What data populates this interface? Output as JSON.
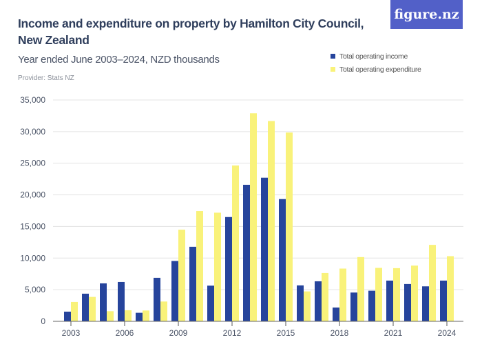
{
  "title": "Income and expenditure on property by Hamilton City Council, New Zealand",
  "subtitle": "Year ended June 2003–2024, NZD thousands",
  "provider": "Provider: Stats NZ",
  "logo": "figure.nz",
  "colors": {
    "income": "#26449c",
    "expenditure": "#f9f27a",
    "logo_bg": "#5260c8"
  },
  "chart_data": {
    "type": "bar",
    "title": "Income and expenditure on property by Hamilton City Council, New Zealand",
    "subtitle": "Year ended June 2003–2024, NZD thousands",
    "categories": [
      "2003",
      "2004",
      "2005",
      "2006",
      "2007",
      "2008",
      "2009",
      "2010",
      "2011",
      "2012",
      "2013",
      "2014",
      "2015",
      "2016",
      "2017",
      "2018",
      "2019",
      "2020",
      "2021",
      "2022",
      "2023",
      "2024"
    ],
    "x_tick_labels": [
      "2003",
      "2006",
      "2009",
      "2012",
      "2015",
      "2018",
      "2021",
      "2024"
    ],
    "y_tick_labels": [
      "0",
      "5,000",
      "10,000",
      "15,000",
      "20,000",
      "25,000",
      "30,000",
      "35,000"
    ],
    "ylim": [
      0,
      35000
    ],
    "grid": true,
    "legend_position": "top-right",
    "series": [
      {
        "name": "Total operating income",
        "values": [
          1530,
          4370,
          6000,
          6220,
          1350,
          6880,
          9540,
          11790,
          5640,
          16490,
          21590,
          22710,
          19330,
          5680,
          6330,
          2180,
          4550,
          4840,
          6440,
          5900,
          5530,
          6440
        ]
      },
      {
        "name": "Total operating expenditure",
        "values": [
          3060,
          3860,
          1600,
          1750,
          1710,
          3130,
          14490,
          17440,
          17180,
          24640,
          32900,
          31670,
          29850,
          4730,
          7640,
          8340,
          10160,
          8450,
          8410,
          8810,
          12090,
          10300
        ]
      }
    ]
  }
}
